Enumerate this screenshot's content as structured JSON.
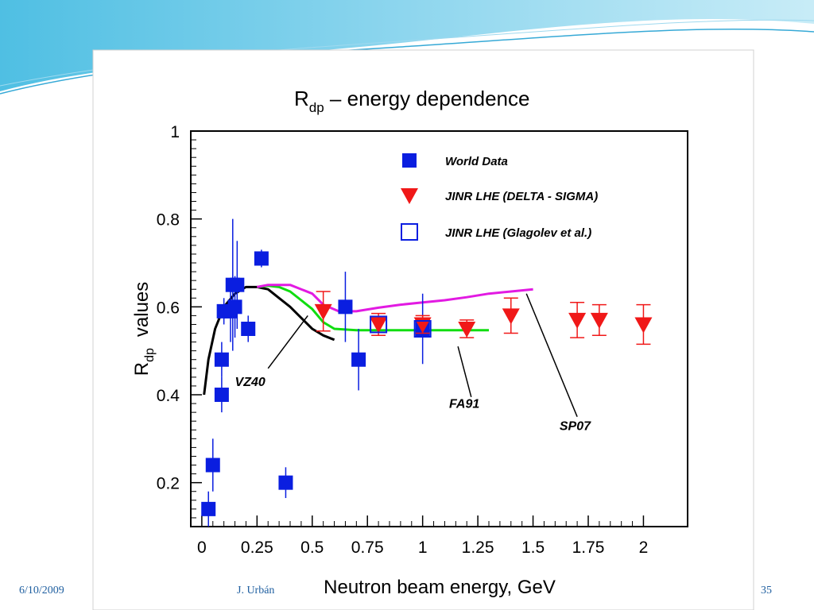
{
  "slide": {
    "date": "6/10/2009",
    "author": "J. Urbán",
    "page_number": "35",
    "accent_color": "#36a9d6"
  },
  "chart_data": {
    "type": "scatter",
    "title_main": "R",
    "title_sub": "dp",
    "title_rest": " – energy dependence",
    "xlabel": "Neutron beam energy, GeV",
    "ylabel_main": "R",
    "ylabel_sub": "dp",
    "ylabel_rest": "values",
    "xlim": [
      -0.05,
      2.2
    ],
    "ylim": [
      0.1,
      1.0
    ],
    "x_ticks": [
      "0",
      "0.25",
      "0.5",
      "0.75",
      "1",
      "1.25",
      "1.5",
      "1.75",
      "2"
    ],
    "y_ticks": [
      "0.2",
      "0.4",
      "0.6",
      "0.8",
      "1"
    ],
    "legend_position": "top-right",
    "series": [
      {
        "name": "World Data",
        "marker": "filled-square",
        "color": "#0a1ee0",
        "points": [
          {
            "x": 0.03,
            "y": 0.14,
            "err": 0.04
          },
          {
            "x": 0.05,
            "y": 0.24,
            "err": 0.06
          },
          {
            "x": 0.09,
            "y": 0.4,
            "err": 0.04
          },
          {
            "x": 0.09,
            "y": 0.48,
            "err": 0.04
          },
          {
            "x": 0.1,
            "y": 0.59,
            "err": 0.03
          },
          {
            "x": 0.13,
            "y": 0.59,
            "err": 0.07
          },
          {
            "x": 0.14,
            "y": 0.65,
            "err": 0.15
          },
          {
            "x": 0.15,
            "y": 0.6,
            "err": 0.07
          },
          {
            "x": 0.16,
            "y": 0.65,
            "err": 0.1
          },
          {
            "x": 0.21,
            "y": 0.55,
            "err": 0.03
          },
          {
            "x": 0.27,
            "y": 0.71,
            "err": 0.02
          },
          {
            "x": 0.38,
            "y": 0.2,
            "err": 0.035
          },
          {
            "x": 0.65,
            "y": 0.6,
            "err": 0.08
          },
          {
            "x": 0.71,
            "y": 0.48,
            "err": 0.07
          },
          {
            "x": 1.0,
            "y": 0.55,
            "err": 0.08
          }
        ]
      },
      {
        "name": "JINR  LHE  (DELTA - SIGMA)",
        "marker": "filled-triangle-down",
        "color": "#f01818",
        "points": [
          {
            "x": 0.55,
            "y": 0.59,
            "err": 0.045
          },
          {
            "x": 0.8,
            "y": 0.56,
            "err": 0.025
          },
          {
            "x": 1.0,
            "y": 0.56,
            "err": 0.02
          },
          {
            "x": 1.2,
            "y": 0.55,
            "err": 0.02
          },
          {
            "x": 1.4,
            "y": 0.58,
            "err": 0.04
          },
          {
            "x": 1.7,
            "y": 0.57,
            "err": 0.04
          },
          {
            "x": 1.8,
            "y": 0.57,
            "err": 0.035
          },
          {
            "x": 2.0,
            "y": 0.56,
            "err": 0.045
          }
        ]
      },
      {
        "name": "JINR  LHE  (Glagolev et al.)",
        "marker": "open-square",
        "color": "#0a1ee0",
        "points": [
          {
            "x": 0.8,
            "y": 0.56,
            "err": 0.0
          },
          {
            "x": 1.0,
            "y": 0.55,
            "err": 0.0
          }
        ]
      }
    ],
    "curves": [
      {
        "name": "VZ40",
        "color": "#000000",
        "points": [
          [
            0.01,
            0.4
          ],
          [
            0.03,
            0.48
          ],
          [
            0.06,
            0.55
          ],
          [
            0.1,
            0.6
          ],
          [
            0.15,
            0.63
          ],
          [
            0.2,
            0.645
          ],
          [
            0.25,
            0.645
          ],
          [
            0.3,
            0.64
          ],
          [
            0.35,
            0.62
          ],
          [
            0.4,
            0.6
          ],
          [
            0.45,
            0.575
          ],
          [
            0.5,
            0.55
          ],
          [
            0.55,
            0.535
          ],
          [
            0.6,
            0.525
          ]
        ]
      },
      {
        "name": "FA91",
        "color": "#10dd10",
        "points": [
          [
            0.25,
            0.645
          ],
          [
            0.3,
            0.648
          ],
          [
            0.35,
            0.645
          ],
          [
            0.4,
            0.635
          ],
          [
            0.45,
            0.615
          ],
          [
            0.5,
            0.595
          ],
          [
            0.55,
            0.565
          ],
          [
            0.6,
            0.55
          ],
          [
            0.7,
            0.547
          ],
          [
            0.8,
            0.547
          ],
          [
            1.0,
            0.547
          ],
          [
            1.2,
            0.547
          ],
          [
            1.3,
            0.547
          ]
        ]
      },
      {
        "name": "SP07",
        "color": "#e21ae2",
        "points": [
          [
            0.25,
            0.645
          ],
          [
            0.3,
            0.65
          ],
          [
            0.4,
            0.65
          ],
          [
            0.5,
            0.63
          ],
          [
            0.55,
            0.605
          ],
          [
            0.62,
            0.59
          ],
          [
            0.7,
            0.59
          ],
          [
            0.8,
            0.598
          ],
          [
            0.9,
            0.605
          ],
          [
            1.0,
            0.61
          ],
          [
            1.1,
            0.615
          ],
          [
            1.2,
            0.622
          ],
          [
            1.3,
            0.63
          ],
          [
            1.4,
            0.635
          ],
          [
            1.5,
            0.64
          ]
        ]
      }
    ],
    "annotations": [
      {
        "text": "VZ40",
        "label_x": 0.15,
        "label_y": 0.42,
        "line_from": [
          0.3,
          0.46
        ],
        "line_to": [
          0.48,
          0.58
        ]
      },
      {
        "text": "FA91",
        "label_x": 1.12,
        "label_y": 0.37,
        "line_from": [
          1.22,
          0.395
        ],
        "line_to": [
          1.16,
          0.51
        ]
      },
      {
        "text": "SP07",
        "label_x": 1.62,
        "label_y": 0.32,
        "line_from": [
          1.7,
          0.35
        ],
        "line_to": [
          1.47,
          0.63
        ]
      }
    ]
  }
}
